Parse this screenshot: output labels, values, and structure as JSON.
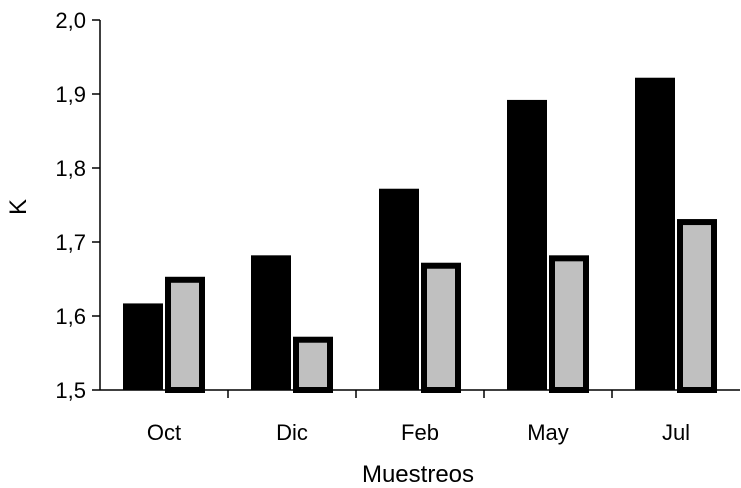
{
  "chart_data": {
    "type": "bar",
    "title": "",
    "xlabel": "Muestreos",
    "ylabel": "K",
    "categories": [
      "Oct",
      "Dic",
      "Feb",
      "May",
      "Jul"
    ],
    "series": [
      {
        "values": [
          1.617,
          1.682,
          1.772,
          1.892,
          1.922
        ],
        "color": "#000000"
      },
      {
        "values": [
          1.653,
          1.572,
          1.672,
          1.682,
          1.731
        ],
        "color": "#c0c0c0"
      }
    ],
    "ylim": [
      1.5,
      2.0
    ],
    "yticks": [
      "1,5",
      "1,6",
      "1,7",
      "1,8",
      "1,9",
      "2,0"
    ],
    "grid": false,
    "legend": "none"
  }
}
